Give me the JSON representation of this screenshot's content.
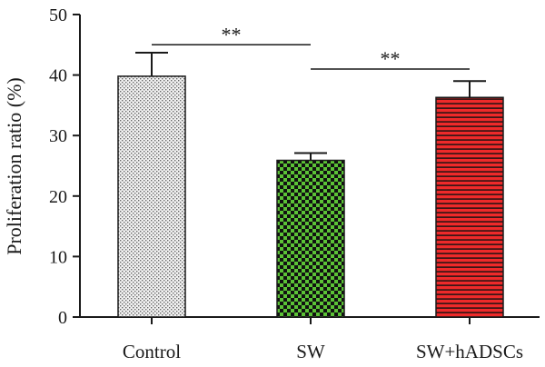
{
  "chart_data": {
    "type": "bar",
    "title": "",
    "xlabel": "",
    "ylabel": "Proliferation ratio (%)",
    "ylim": [
      0,
      50
    ],
    "yticks": [
      "0",
      "10",
      "20",
      "30",
      "40",
      "50"
    ],
    "categories": [
      "Control",
      "SW",
      "SW+hADSCs"
    ],
    "values": [
      39.8,
      25.9,
      36.3
    ],
    "errors": [
      3.9,
      1.2,
      2.7
    ],
    "bar_fills": [
      "dotted",
      "checkerboard",
      "horizontal-stripes"
    ],
    "bar_colors": [
      "#e8e8e8",
      "#5bc236",
      "#ee2a2a"
    ],
    "significance": [
      {
        "from": "Control",
        "to": "SW",
        "label": "**",
        "y": 45
      },
      {
        "from": "SW",
        "to": "SW+hADSCs",
        "label": "**",
        "y": 41
      }
    ],
    "grid": false,
    "legend": "none"
  }
}
